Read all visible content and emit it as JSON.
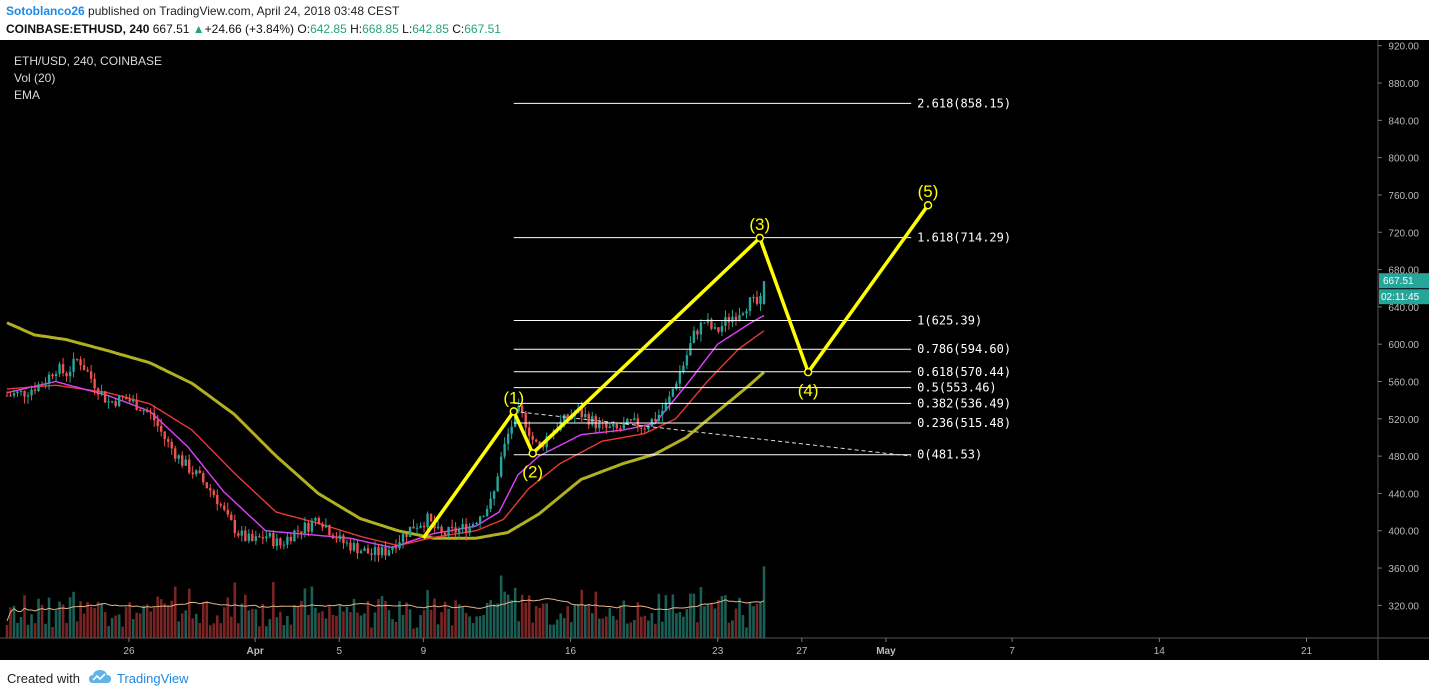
{
  "header": {
    "author": "Sotoblanco26",
    "published_text": " published on TradingView.com, April 24, 2018 03:48 CEST",
    "symbol": "COINBASE:ETHUSD, 240",
    "last_price": "667.51",
    "change_arrow": "▲",
    "change": "+24.66 (+3.84%)",
    "o_label": "O:",
    "o_value": "642.85",
    "h_label": "H:",
    "h_value": "668.85",
    "l_label": "L:",
    "l_value": "642.85",
    "c_label": "C:",
    "c_value": "667.51"
  },
  "legend": {
    "series": "ETH/USD, 240, COINBASE",
    "volume": "Vol (20)",
    "ema": "EMA"
  },
  "footer": {
    "created_with": "Created with",
    "brand": "TradingView",
    "logo_icon": "tradingview-cloud-icon"
  },
  "colors": {
    "background": "#000000",
    "up_candle": "#26a69a",
    "down_candle": "#ef5350",
    "wave_line": "#ffff00",
    "fib_line": "#ffffff",
    "ema_fast": "#e040fb",
    "ema_mid": "#e53935",
    "ema_slow": "#b0b020",
    "price_badge": "#26a69a",
    "brand": "#1e88e5"
  },
  "chart_data": {
    "type": "candlestick",
    "symbol": "ETH/USD",
    "timeframe": "240",
    "exchange": "COINBASE",
    "y_axis": {
      "ticks": [
        "920.00",
        "880.00",
        "840.00",
        "800.00",
        "760.00",
        "720.00",
        "680.00",
        "640.00",
        "600.00",
        "560.00",
        "520.00",
        "480.00",
        "440.00",
        "400.00",
        "360.00",
        "320.00"
      ],
      "range": [
        285,
        924
      ]
    },
    "x_axis": {
      "ticks": [
        "26",
        "Apr",
        "5",
        "9",
        "16",
        "23",
        "27",
        "May",
        "7",
        "14",
        "21"
      ],
      "tick_days": [
        26,
        32,
        36,
        40,
        47,
        54,
        58,
        62,
        68,
        75,
        82
      ],
      "range_days": [
        20.2,
        85.4
      ]
    },
    "current_price": "667.51",
    "countdown": "02:11:45",
    "price_path": [
      [
        20.2,
        545
      ],
      [
        21.0,
        548
      ],
      [
        22.0,
        560
      ],
      [
        22.5,
        575
      ],
      [
        23.0,
        568
      ],
      [
        23.6,
        585
      ],
      [
        24.3,
        560
      ],
      [
        25.0,
        538
      ],
      [
        25.8,
        542
      ],
      [
        26.4,
        535
      ],
      [
        27.1,
        523
      ],
      [
        27.8,
        495
      ],
      [
        28.6,
        472
      ],
      [
        29.3,
        458
      ],
      [
        30.1,
        438
      ],
      [
        30.7,
        412
      ],
      [
        31.3,
        395
      ],
      [
        31.9,
        388
      ],
      [
        32.5,
        395
      ],
      [
        33.2,
        385
      ],
      [
        33.8,
        398
      ],
      [
        34.5,
        405
      ],
      [
        35.0,
        415
      ],
      [
        35.5,
        402
      ],
      [
        36.1,
        388
      ],
      [
        36.8,
        382
      ],
      [
        37.5,
        375
      ],
      [
        38.2,
        378
      ],
      [
        38.9,
        392
      ],
      [
        39.5,
        405
      ],
      [
        40.2,
        412
      ],
      [
        40.8,
        395
      ],
      [
        41.5,
        400
      ],
      [
        42.2,
        405
      ],
      [
        42.8,
        420
      ],
      [
        43.3,
        432
      ],
      [
        43.6,
        470
      ],
      [
        44.1,
        508
      ],
      [
        44.5,
        528
      ],
      [
        44.8,
        520
      ],
      [
        45.2,
        498
      ],
      [
        45.5,
        488
      ],
      [
        46.0,
        505
      ],
      [
        46.7,
        518
      ],
      [
        47.3,
        528
      ],
      [
        47.9,
        520
      ],
      [
        48.5,
        510
      ],
      [
        49.2,
        508
      ],
      [
        49.9,
        515
      ],
      [
        50.5,
        512
      ],
      [
        51.1,
        522
      ],
      [
        51.6,
        535
      ],
      [
        52.0,
        560
      ],
      [
        52.4,
        580
      ],
      [
        52.9,
        612
      ],
      [
        53.4,
        625
      ],
      [
        53.9,
        612
      ],
      [
        54.4,
        625
      ],
      [
        55.0,
        635
      ],
      [
        55.5,
        645
      ],
      [
        56.0,
        642
      ],
      [
        56.3,
        667.51
      ]
    ],
    "ema_fast": [
      [
        20.2,
        548
      ],
      [
        22.5,
        560
      ],
      [
        25.0,
        545
      ],
      [
        27.0,
        528
      ],
      [
        28.8,
        490
      ],
      [
        30.5,
        442
      ],
      [
        32.5,
        400
      ],
      [
        34.5,
        396
      ],
      [
        36.5,
        392
      ],
      [
        38.5,
        382
      ],
      [
        40.5,
        397
      ],
      [
        42.5,
        405
      ],
      [
        43.6,
        420
      ],
      [
        44.5,
        460
      ],
      [
        45.5,
        480
      ],
      [
        47.5,
        503
      ],
      [
        49.5,
        508
      ],
      [
        51.0,
        515
      ],
      [
        52.5,
        556
      ],
      [
        54.0,
        600
      ],
      [
        55.5,
        622
      ],
      [
        56.3,
        632
      ]
    ],
    "ema_mid": [
      [
        20.2,
        552
      ],
      [
        22.5,
        556
      ],
      [
        25.0,
        548
      ],
      [
        27.0,
        536
      ],
      [
        29.0,
        508
      ],
      [
        31.0,
        462
      ],
      [
        33.0,
        420
      ],
      [
        35.0,
        408
      ],
      [
        37.0,
        394
      ],
      [
        38.8,
        384
      ],
      [
        40.5,
        393
      ],
      [
        42.5,
        400
      ],
      [
        43.8,
        412
      ],
      [
        45.0,
        445
      ],
      [
        46.5,
        472
      ],
      [
        48.5,
        496
      ],
      [
        50.5,
        504
      ],
      [
        52.0,
        520
      ],
      [
        53.5,
        560
      ],
      [
        55.0,
        595
      ],
      [
        56.3,
        616
      ]
    ],
    "ema_slow": [
      [
        20.2,
        623
      ],
      [
        21.5,
        610
      ],
      [
        23.0,
        605
      ],
      [
        25.0,
        593
      ],
      [
        27.0,
        580
      ],
      [
        29.0,
        558
      ],
      [
        31.0,
        525
      ],
      [
        33.0,
        480
      ],
      [
        35.0,
        440
      ],
      [
        37.0,
        413
      ],
      [
        38.8,
        400
      ],
      [
        40.5,
        392
      ],
      [
        42.5,
        392
      ],
      [
        44.0,
        398
      ],
      [
        45.5,
        418
      ],
      [
        47.5,
        455
      ],
      [
        49.5,
        472
      ],
      [
        51.0,
        482
      ],
      [
        52.5,
        500
      ],
      [
        54.0,
        528
      ],
      [
        55.5,
        556
      ],
      [
        56.3,
        572
      ]
    ],
    "volume_bars_profile": "volume histogram along chart bottom from Mar 20 to Apr 24",
    "elliott_wave": {
      "points": [
        {
          "label": "(1)",
          "day": 44.3,
          "price": 528
        },
        {
          "label": "(2)",
          "day": 45.2,
          "price": 483
        },
        {
          "label": "(3)",
          "day": 56.0,
          "price": 714
        },
        {
          "label": "(4)",
          "day": 58.3,
          "price": 570
        },
        {
          "label": "(5)",
          "day": 64.0,
          "price": 749
        }
      ],
      "start": {
        "day": 40.0,
        "price": 392
      }
    },
    "fibonacci": [
      {
        "label": "2.618(858.15)",
        "price": 858.15
      },
      {
        "label": "1.618(714.29)",
        "price": 714.29
      },
      {
        "label": "1(625.39)",
        "price": 625.39
      },
      {
        "label": "0.786(594.60)",
        "price": 594.6
      },
      {
        "label": "0.618(570.44)",
        "price": 570.44
      },
      {
        "label": "0.5(553.46)",
        "price": 553.46
      },
      {
        "label": "0.382(536.49)",
        "price": 536.49
      },
      {
        "label": "0.236(515.48)",
        "price": 515.48
      },
      {
        "label": "0(481.53)",
        "price": 481.53
      }
    ],
    "trendline": {
      "from": {
        "day": 44.3,
        "price": 528
      },
      "to": {
        "day": 63.2,
        "price": 480
      }
    }
  }
}
